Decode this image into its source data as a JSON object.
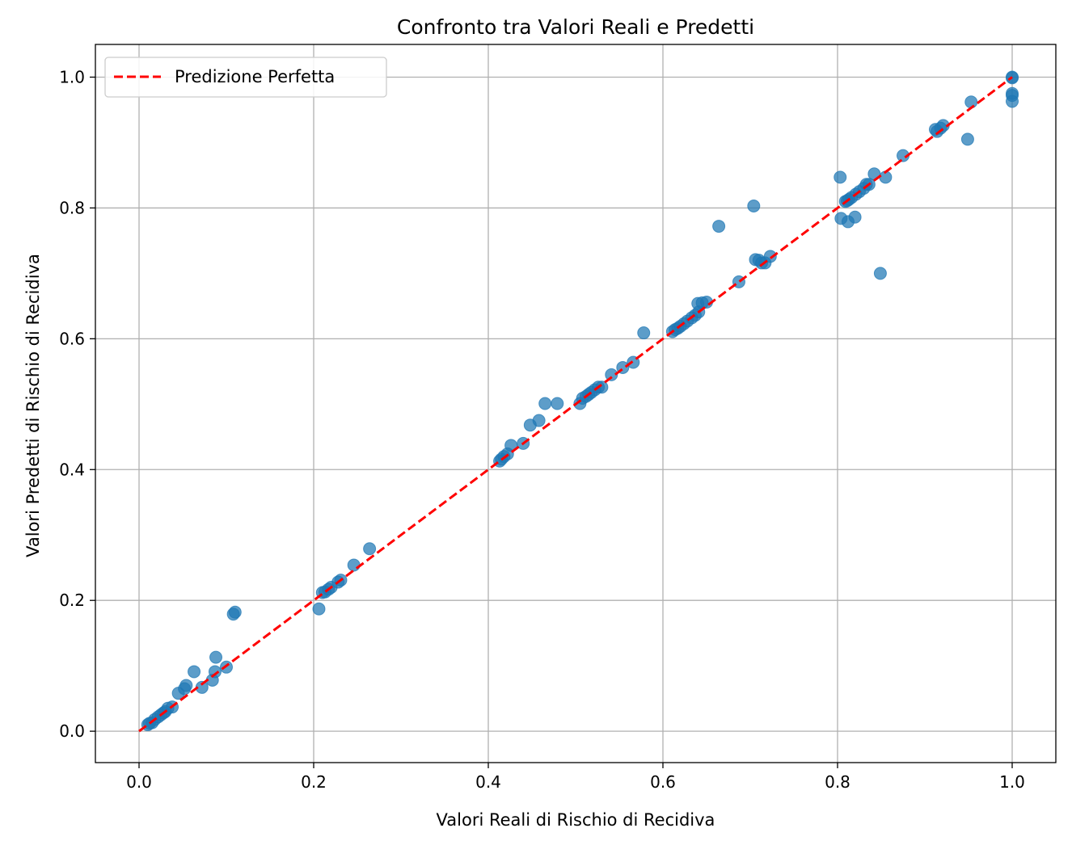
{
  "chart_data": {
    "type": "scatter",
    "title": "Confronto tra Valori Reali e Predetti",
    "xlabel": "Valori Reali di Rischio di Recidiva",
    "ylabel": "Valori Predetti di Rischio di Recidiva",
    "xlim": [
      -0.05,
      1.05
    ],
    "ylim": [
      -0.048,
      1.05
    ],
    "xticks": [
      0.0,
      0.2,
      0.4,
      0.6,
      0.8,
      1.0
    ],
    "yticks": [
      0.0,
      0.2,
      0.4,
      0.6,
      0.8,
      1.0
    ],
    "xtick_labels": [
      "0.0",
      "0.2",
      "0.4",
      "0.6",
      "0.8",
      "1.0"
    ],
    "ytick_labels": [
      "0.0",
      "0.2",
      "0.4",
      "0.6",
      "0.8",
      "1.0"
    ],
    "grid": true,
    "legend_position": "top-left",
    "colors": {
      "points": "#1f77b4",
      "reference_line": "#ff0000",
      "grid": "#b0b0b0"
    },
    "series": [
      {
        "type": "scatter",
        "points": [
          [
            0.01,
            0.01
          ],
          [
            0.012,
            0.012
          ],
          [
            0.015,
            0.013
          ],
          [
            0.018,
            0.018
          ],
          [
            0.022,
            0.022
          ],
          [
            0.025,
            0.025
          ],
          [
            0.028,
            0.028
          ],
          [
            0.03,
            0.03
          ],
          [
            0.033,
            0.035
          ],
          [
            0.038,
            0.037
          ],
          [
            0.045,
            0.058
          ],
          [
            0.052,
            0.065
          ],
          [
            0.054,
            0.07
          ],
          [
            0.063,
            0.091
          ],
          [
            0.072,
            0.067
          ],
          [
            0.084,
            0.078
          ],
          [
            0.087,
            0.091
          ],
          [
            0.088,
            0.113
          ],
          [
            0.1,
            0.098
          ],
          [
            0.108,
            0.179
          ],
          [
            0.11,
            0.182
          ],
          [
            0.206,
            0.187
          ],
          [
            0.21,
            0.212
          ],
          [
            0.213,
            0.213
          ],
          [
            0.217,
            0.217
          ],
          [
            0.22,
            0.22
          ],
          [
            0.228,
            0.228
          ],
          [
            0.231,
            0.231
          ],
          [
            0.246,
            0.254
          ],
          [
            0.264,
            0.279
          ],
          [
            0.413,
            0.413
          ],
          [
            0.415,
            0.416
          ],
          [
            0.418,
            0.42
          ],
          [
            0.422,
            0.424
          ],
          [
            0.426,
            0.437
          ],
          [
            0.44,
            0.44
          ],
          [
            0.448,
            0.468
          ],
          [
            0.458,
            0.475
          ],
          [
            0.465,
            0.501
          ],
          [
            0.479,
            0.501
          ],
          [
            0.505,
            0.501
          ],
          [
            0.508,
            0.509
          ],
          [
            0.512,
            0.512
          ],
          [
            0.515,
            0.515
          ],
          [
            0.518,
            0.518
          ],
          [
            0.522,
            0.522
          ],
          [
            0.526,
            0.526
          ],
          [
            0.53,
            0.526
          ],
          [
            0.541,
            0.545
          ],
          [
            0.554,
            0.556
          ],
          [
            0.566,
            0.564
          ],
          [
            0.578,
            0.609
          ],
          [
            0.611,
            0.611
          ],
          [
            0.614,
            0.614
          ],
          [
            0.617,
            0.616
          ],
          [
            0.62,
            0.619
          ],
          [
            0.624,
            0.623
          ],
          [
            0.628,
            0.627
          ],
          [
            0.633,
            0.632
          ],
          [
            0.637,
            0.636
          ],
          [
            0.641,
            0.641
          ],
          [
            0.64,
            0.654
          ],
          [
            0.645,
            0.655
          ],
          [
            0.65,
            0.656
          ],
          [
            0.664,
            0.772
          ],
          [
            0.687,
            0.687
          ],
          [
            0.704,
            0.803
          ],
          [
            0.706,
            0.721
          ],
          [
            0.71,
            0.72
          ],
          [
            0.713,
            0.716
          ],
          [
            0.717,
            0.716
          ],
          [
            0.723,
            0.726
          ],
          [
            0.803,
            0.847
          ],
          [
            0.804,
            0.784
          ],
          [
            0.809,
            0.81
          ],
          [
            0.811,
            0.811
          ],
          [
            0.813,
            0.813
          ],
          [
            0.812,
            0.779
          ],
          [
            0.816,
            0.816
          ],
          [
            0.82,
            0.786
          ],
          [
            0.821,
            0.821
          ],
          [
            0.825,
            0.825
          ],
          [
            0.83,
            0.83
          ],
          [
            0.833,
            0.836
          ],
          [
            0.836,
            0.836
          ],
          [
            0.842,
            0.852
          ],
          [
            0.849,
            0.7
          ],
          [
            0.855,
            0.847
          ],
          [
            0.875,
            0.88
          ],
          [
            0.912,
            0.92
          ],
          [
            0.914,
            0.917
          ],
          [
            0.918,
            0.922
          ],
          [
            0.921,
            0.926
          ],
          [
            0.949,
            0.905
          ],
          [
            0.953,
            0.962
          ],
          [
            1.0,
            1.0
          ],
          [
            1.0,
            0.999
          ],
          [
            1.0,
            0.975
          ],
          [
            1.0,
            0.972
          ],
          [
            1.0,
            0.963
          ]
        ]
      },
      {
        "name": "Predizione Perfetta",
        "type": "line",
        "style": "dashed",
        "points": [
          [
            0.0,
            0.0
          ],
          [
            1.0,
            1.0
          ]
        ]
      }
    ]
  }
}
